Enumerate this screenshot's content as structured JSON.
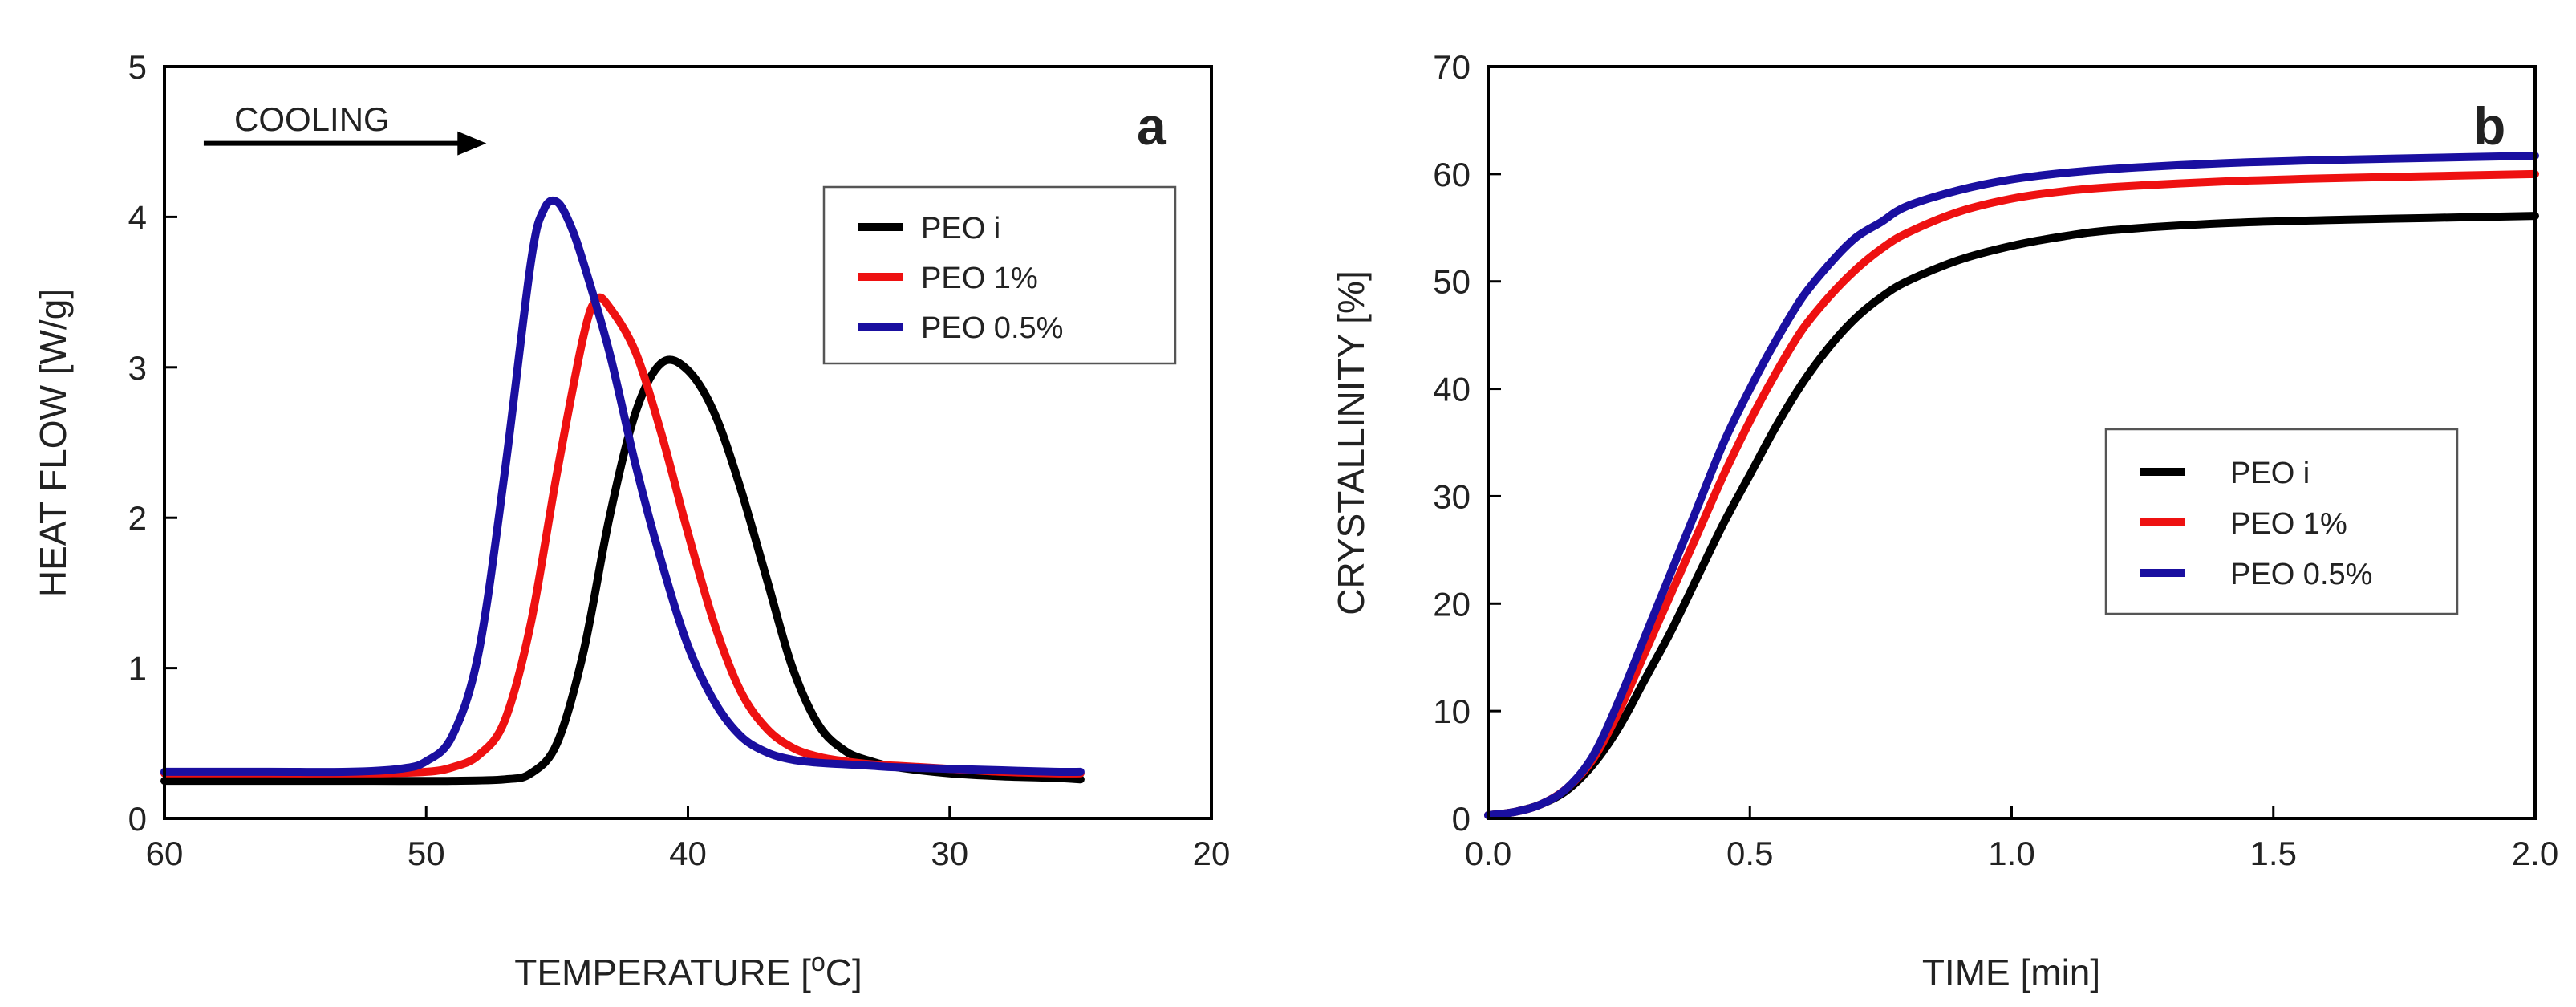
{
  "colors": {
    "axis": "#000000",
    "legend_border": "#555555",
    "series": [
      "#000000",
      "#ee1111",
      "#1a0fa0"
    ]
  },
  "chart_data": [
    {
      "type": "line",
      "panel": "a",
      "title": "",
      "xlabel": "TEMPERATURE [",
      "xlabel_sup": "o",
      "xlabel_end": "C]",
      "ylabel": "HEAT FLOW [W/g]",
      "xlim": [
        60,
        20
      ],
      "ylim": [
        0,
        5
      ],
      "xticks": [
        "60",
        "50",
        "40",
        "30",
        "20"
      ],
      "xtick_values": [
        60,
        50,
        40,
        30,
        20
      ],
      "yticks": [
        "0",
        "1",
        "2",
        "3",
        "4",
        "5"
      ],
      "ytick_values": [
        0,
        1,
        2,
        3,
        4,
        5
      ],
      "annotation": "COOLING",
      "annotation_arrow": {
        "from": [
          58.5,
          4.49
        ],
        "to": [
          47.7,
          4.49
        ]
      },
      "legend": {
        "position": "top-right"
      },
      "series": [
        {
          "name": "PEO i",
          "x": [
            60,
            56,
            52,
            49,
            47,
            46,
            45,
            44,
            43,
            42,
            41,
            40,
            39,
            38,
            37,
            36,
            35,
            34,
            33,
            32,
            30,
            28,
            26,
            25
          ],
          "y": [
            0.25,
            0.25,
            0.25,
            0.25,
            0.26,
            0.3,
            0.5,
            1.1,
            2.0,
            2.7,
            3.03,
            2.98,
            2.7,
            2.2,
            1.6,
            1.0,
            0.62,
            0.45,
            0.38,
            0.34,
            0.3,
            0.28,
            0.27,
            0.26
          ]
        },
        {
          "name": "PEO 1%",
          "x": [
            60,
            56,
            52,
            50,
            49,
            48,
            47,
            46,
            45,
            44,
            43.5,
            43,
            42,
            41,
            40,
            39,
            38,
            37,
            36,
            35,
            34,
            33,
            32,
            30,
            28,
            26,
            25
          ],
          "y": [
            0.3,
            0.3,
            0.3,
            0.31,
            0.34,
            0.42,
            0.65,
            1.3,
            2.3,
            3.2,
            3.45,
            3.4,
            3.1,
            2.55,
            1.9,
            1.3,
            0.85,
            0.6,
            0.47,
            0.41,
            0.38,
            0.36,
            0.35,
            0.33,
            0.31,
            0.3,
            0.3
          ]
        },
        {
          "name": "PEO 0.5%",
          "x": [
            60,
            56,
            53,
            51,
            50,
            49,
            48,
            47,
            46,
            45.5,
            45,
            44.5,
            44,
            43,
            42,
            41,
            40,
            39,
            38,
            37,
            36,
            35,
            34,
            33,
            32,
            30,
            28,
            26,
            25
          ],
          "y": [
            0.31,
            0.31,
            0.31,
            0.33,
            0.38,
            0.55,
            1.1,
            2.3,
            3.7,
            4.05,
            4.1,
            3.95,
            3.7,
            3.1,
            2.35,
            1.7,
            1.15,
            0.78,
            0.55,
            0.44,
            0.39,
            0.37,
            0.36,
            0.35,
            0.34,
            0.33,
            0.32,
            0.31,
            0.31
          ]
        }
      ]
    },
    {
      "type": "line",
      "panel": "b",
      "title": "",
      "xlabel": "TIME [min]",
      "ylabel": "CRYSTALLINITY [%]",
      "xlim": [
        0,
        2
      ],
      "ylim": [
        0,
        70
      ],
      "xticks": [
        "0.0",
        "0.5",
        "1.0",
        "1.5",
        "2.0"
      ],
      "xtick_values": [
        0,
        0.5,
        1.0,
        1.5,
        2.0
      ],
      "yticks": [
        "0",
        "10",
        "20",
        "30",
        "40",
        "50",
        "60",
        "70"
      ],
      "ytick_values": [
        0,
        10,
        20,
        30,
        40,
        50,
        60,
        70
      ],
      "legend": {
        "position": "center-right"
      },
      "series": [
        {
          "name": "PEO i",
          "x": [
            0,
            0.05,
            0.1,
            0.15,
            0.2,
            0.25,
            0.3,
            0.35,
            0.4,
            0.45,
            0.5,
            0.55,
            0.6,
            0.65,
            0.7,
            0.75,
            0.8,
            0.9,
            1.0,
            1.1,
            1.2,
            1.4,
            1.6,
            1.8,
            2.0
          ],
          "y": [
            0.3,
            0.6,
            1.3,
            2.6,
            5.0,
            8.5,
            13.0,
            17.5,
            22.5,
            27.5,
            32.0,
            36.5,
            40.5,
            43.8,
            46.5,
            48.5,
            50.0,
            52.0,
            53.3,
            54.2,
            54.8,
            55.4,
            55.7,
            55.9,
            56.1
          ]
        },
        {
          "name": "PEO 1%",
          "x": [
            0,
            0.05,
            0.1,
            0.15,
            0.2,
            0.25,
            0.3,
            0.35,
            0.4,
            0.45,
            0.5,
            0.55,
            0.6,
            0.65,
            0.7,
            0.75,
            0.8,
            0.9,
            1.0,
            1.1,
            1.2,
            1.4,
            1.6,
            1.8,
            2.0
          ],
          "y": [
            0.3,
            0.6,
            1.3,
            2.8,
            5.5,
            10.0,
            15.5,
            21.0,
            26.5,
            32.0,
            37.0,
            41.5,
            45.5,
            48.5,
            51.0,
            53.0,
            54.5,
            56.5,
            57.7,
            58.4,
            58.8,
            59.3,
            59.6,
            59.8,
            60.0
          ]
        },
        {
          "name": "PEO 0.5%",
          "x": [
            0,
            0.05,
            0.1,
            0.15,
            0.2,
            0.25,
            0.3,
            0.35,
            0.4,
            0.45,
            0.5,
            0.55,
            0.6,
            0.65,
            0.7,
            0.75,
            0.8,
            0.9,
            1.0,
            1.1,
            1.2,
            1.4,
            1.6,
            1.8,
            2.0
          ],
          "y": [
            0.3,
            0.6,
            1.3,
            2.8,
            5.8,
            11.0,
            17.0,
            23.0,
            29.0,
            35.0,
            40.0,
            44.5,
            48.5,
            51.5,
            54.0,
            55.5,
            57.0,
            58.5,
            59.5,
            60.1,
            60.5,
            61.0,
            61.3,
            61.5,
            61.7
          ]
        }
      ]
    }
  ]
}
